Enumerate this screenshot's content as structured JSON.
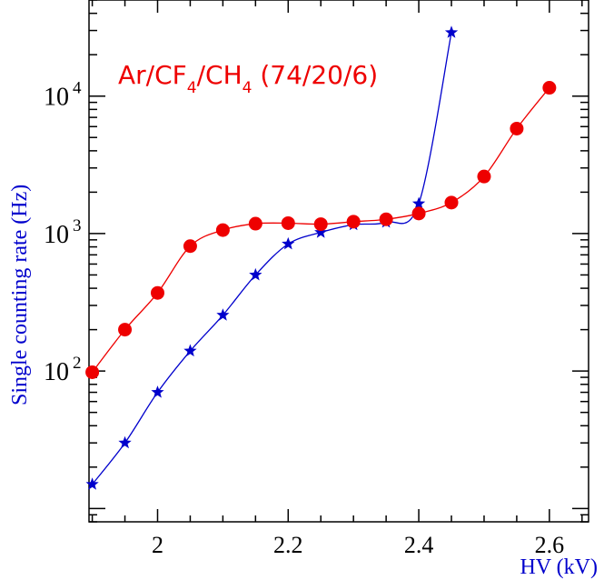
{
  "chart_data": {
    "type": "line",
    "scale": {
      "x": "linear",
      "y": "log"
    },
    "xlim": [
      1.895,
      2.66
    ],
    "ylim": [
      8,
      50000
    ],
    "x_ticks": [
      {
        "value": 2.0,
        "label": "2"
      },
      {
        "value": 2.2,
        "label": "2.2"
      },
      {
        "value": 2.4,
        "label": "2.4"
      },
      {
        "value": 2.6,
        "label": "2.6"
      }
    ],
    "y_ticks": [
      {
        "value": 100,
        "base": "10",
        "exp": "2"
      },
      {
        "value": 1000,
        "base": "10",
        "exp": "3"
      },
      {
        "value": 10000,
        "base": "10",
        "exp": "4"
      }
    ],
    "xlabel": "HV (kV)",
    "ylabel": "Single counting rate (Hz)",
    "legend": {
      "prefix": "Ar/CF",
      "sub1": "4",
      "mid": "/CH",
      "sub2": "4",
      "suffix": " (74/20/6)"
    },
    "grid": false,
    "series": [
      {
        "marker": "star",
        "color": "#0000cc",
        "points": [
          [
            1.9,
            15
          ],
          [
            1.95,
            30
          ],
          [
            2.0,
            70
          ],
          [
            2.05,
            140
          ],
          [
            2.1,
            255
          ],
          [
            2.15,
            500
          ],
          [
            2.2,
            840
          ],
          [
            2.25,
            1020
          ],
          [
            2.3,
            1160
          ],
          [
            2.35,
            1210
          ],
          [
            2.4,
            1650
          ],
          [
            2.45,
            29000
          ]
        ]
      },
      {
        "marker": "circle",
        "color": "#ee0000",
        "points": [
          [
            1.9,
            98
          ],
          [
            1.95,
            200
          ],
          [
            2.0,
            370
          ],
          [
            2.05,
            810
          ],
          [
            2.1,
            1060
          ],
          [
            2.15,
            1180
          ],
          [
            2.2,
            1190
          ],
          [
            2.25,
            1170
          ],
          [
            2.3,
            1220
          ],
          [
            2.35,
            1270
          ],
          [
            2.4,
            1400
          ],
          [
            2.45,
            1680
          ],
          [
            2.5,
            2600
          ],
          [
            2.55,
            5800
          ],
          [
            2.6,
            11500
          ]
        ]
      }
    ]
  }
}
